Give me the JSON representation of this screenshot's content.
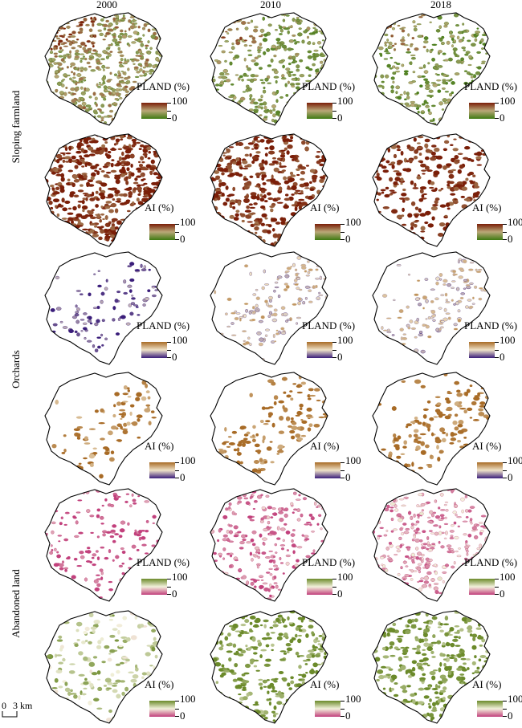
{
  "years": [
    "2000",
    "2010",
    "2018"
  ],
  "row_groups": [
    "Sloping farmland",
    "Orchards",
    "Abandoned land"
  ],
  "legend": {
    "pland_title": "PLAND (%)",
    "ai_title": "AI (%)",
    "max": "100",
    "min": "0"
  },
  "scalebar": {
    "zero": "0",
    "dist": "3 km"
  },
  "colors": {
    "sloping": {
      "high": "#7a1e08",
      "mid": "#b9a878",
      "low": "#3f7a12"
    },
    "orchards": {
      "high": "#a86b26",
      "mid": "#efe3c9",
      "low": "#3a1d7a"
    },
    "abandoned": {
      "high": "#6b8a2a",
      "mid": "#f3f1dc",
      "low": "#c2407c"
    }
  },
  "panels": [
    {
      "group": "sloping",
      "metric": "pland",
      "year": "2000",
      "density": 0.95,
      "level": 0.55
    },
    {
      "group": "sloping",
      "metric": "pland",
      "year": "2010",
      "density": 0.55,
      "level": 0.35
    },
    {
      "group": "sloping",
      "metric": "pland",
      "year": "2018",
      "density": 0.45,
      "level": 0.3
    },
    {
      "group": "sloping",
      "metric": "ai",
      "year": "2000",
      "density": 0.9,
      "level": 0.95
    },
    {
      "group": "sloping",
      "metric": "ai",
      "year": "2010",
      "density": 0.6,
      "level": 0.95
    },
    {
      "group": "sloping",
      "metric": "ai",
      "year": "2018",
      "density": 0.4,
      "level": 0.95
    },
    {
      "group": "orchards",
      "metric": "pland",
      "year": "2000",
      "density": 0.22,
      "level": 0.15
    },
    {
      "group": "orchards",
      "metric": "pland",
      "year": "2010",
      "density": 0.35,
      "level": 0.6
    },
    {
      "group": "orchards",
      "metric": "pland",
      "year": "2018",
      "density": 0.38,
      "level": 0.6
    },
    {
      "group": "orchards",
      "metric": "ai",
      "year": "2000",
      "density": 0.22,
      "level": 0.9
    },
    {
      "group": "orchards",
      "metric": "ai",
      "year": "2010",
      "density": 0.35,
      "level": 0.95
    },
    {
      "group": "orchards",
      "metric": "ai",
      "year": "2018",
      "density": 0.38,
      "level": 0.95
    },
    {
      "group": "abandoned",
      "metric": "pland",
      "year": "2000",
      "density": 0.2,
      "level": 0.05
    },
    {
      "group": "abandoned",
      "metric": "pland",
      "year": "2010",
      "density": 0.4,
      "level": 0.2
    },
    {
      "group": "abandoned",
      "metric": "pland",
      "year": "2018",
      "density": 0.5,
      "level": 0.3
    },
    {
      "group": "abandoned",
      "metric": "ai",
      "year": "2000",
      "density": 0.25,
      "level": 0.7
    },
    {
      "group": "abandoned",
      "metric": "ai",
      "year": "2010",
      "density": 0.45,
      "level": 0.95
    },
    {
      "group": "abandoned",
      "metric": "ai",
      "year": "2018",
      "density": 0.5,
      "level": 0.95
    }
  ]
}
